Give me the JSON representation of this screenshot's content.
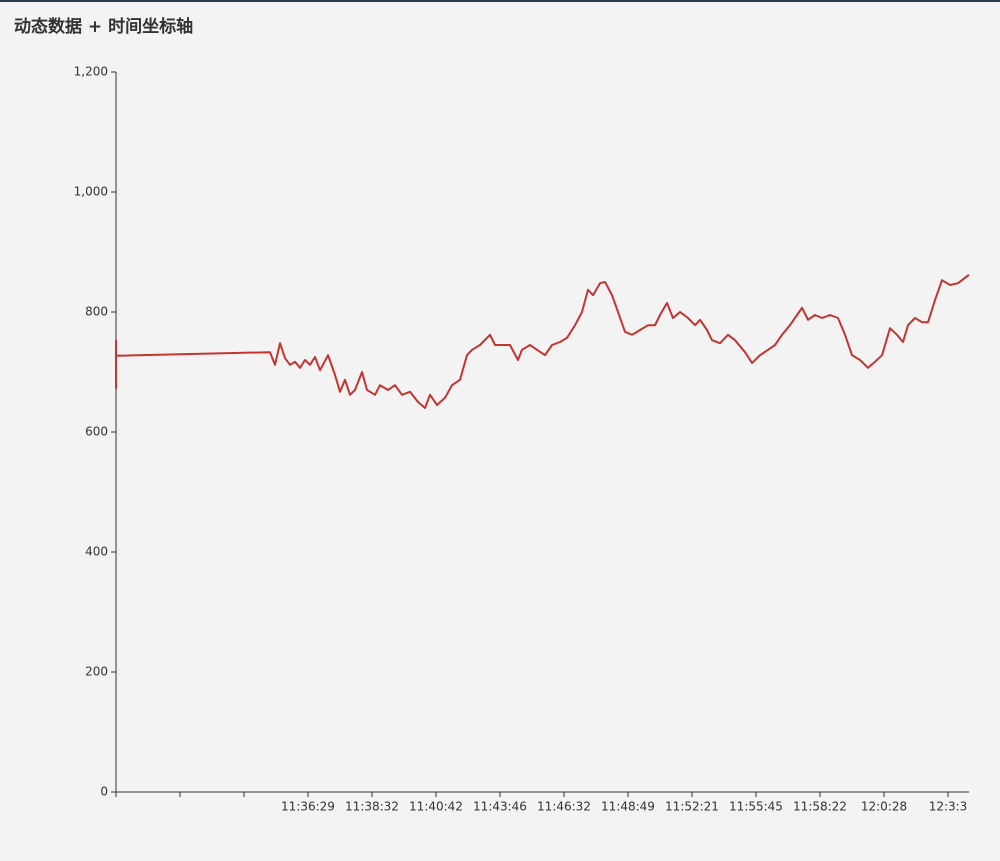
{
  "chart_data": {
    "type": "line",
    "title": "动态数据 + 时间坐标轴",
    "series": [
      {
        "color": "#c23531",
        "x": [
          0,
          0,
          0,
          2.406,
          2.484,
          2.563,
          2.641,
          2.719,
          2.797,
          2.875,
          2.953,
          3.031,
          3.109,
          3.188,
          3.313,
          3.422,
          3.5,
          3.578,
          3.656,
          3.734,
          3.844,
          3.922,
          4.047,
          4.125,
          4.25,
          4.359,
          4.469,
          4.594,
          4.719,
          4.828,
          4.906,
          5.016,
          5.141,
          5.25,
          5.375,
          5.484,
          5.563,
          5.688,
          5.844,
          5.922,
          6.078,
          6.156,
          6.281,
          6.344,
          6.469,
          6.578,
          6.703,
          6.813,
          6.938,
          7.047,
          7.172,
          7.281,
          7.375,
          7.453,
          7.563,
          7.641,
          7.75,
          7.844,
          7.953,
          8.063,
          8.188,
          8.313,
          8.422,
          8.5,
          8.609,
          8.703,
          8.813,
          8.938,
          9.047,
          9.125,
          9.234,
          9.313,
          9.438,
          9.563,
          9.672,
          9.828,
          9.938,
          10.063,
          10.188,
          10.297,
          10.406,
          10.531,
          10.641,
          10.719,
          10.813,
          10.922,
          11.031,
          11.156,
          11.281,
          11.391,
          11.5,
          11.625,
          11.75,
          11.859,
          11.969,
          12.094,
          12.203,
          12.297,
          12.375,
          12.484,
          12.594,
          12.688,
          12.797,
          12.906,
          13.031,
          13.156,
          13.266,
          13.328
        ],
        "values": [
          753,
          673,
          727,
          733,
          712,
          748,
          723,
          712,
          717,
          707,
          720,
          712,
          725,
          703,
          728,
          695,
          667,
          687,
          662,
          670,
          700,
          670,
          662,
          678,
          670,
          678,
          662,
          667,
          650,
          640,
          662,
          645,
          657,
          678,
          687,
          728,
          737,
          745,
          762,
          745,
          745,
          745,
          720,
          737,
          745,
          737,
          728,
          745,
          750,
          757,
          778,
          800,
          837,
          828,
          848,
          850,
          828,
          800,
          767,
          762,
          770,
          778,
          778,
          795,
          815,
          790,
          800,
          790,
          778,
          787,
          770,
          753,
          748,
          762,
          753,
          733,
          715,
          728,
          737,
          745,
          762,
          778,
          795,
          807,
          787,
          795,
          790,
          795,
          790,
          762,
          728,
          720,
          707,
          717,
          728,
          773,
          762,
          750,
          778,
          790,
          783,
          783,
          820,
          853,
          845,
          848,
          857,
          862
        ]
      }
    ],
    "xlim": [
      0,
      13.328
    ],
    "xticks": [
      {
        "value": 0,
        "label": null
      },
      {
        "value": 1,
        "label": null
      },
      {
        "value": 2,
        "label": null
      },
      {
        "value": 3,
        "label": "11:36:29"
      },
      {
        "value": 4,
        "label": "11:38:32"
      },
      {
        "value": 5,
        "label": "11:40:42"
      },
      {
        "value": 6,
        "label": "11:43:46"
      },
      {
        "value": 7,
        "label": "11:46:32"
      },
      {
        "value": 8,
        "label": "11:48:49"
      },
      {
        "value": 9,
        "label": "11:52:21"
      },
      {
        "value": 10,
        "label": "11:55:45"
      },
      {
        "value": 11,
        "label": "11:58:22"
      },
      {
        "value": 12,
        "label": "12:0:28"
      },
      {
        "value": 13,
        "label": "12:3:3"
      }
    ],
    "ylim": [
      0,
      1200
    ],
    "yticks": [
      0,
      200,
      400,
      600,
      800,
      {
        "value": 1000,
        "label": "1,000"
      },
      {
        "value": 1200,
        "label": "1,200"
      }
    ],
    "grid": false
  }
}
